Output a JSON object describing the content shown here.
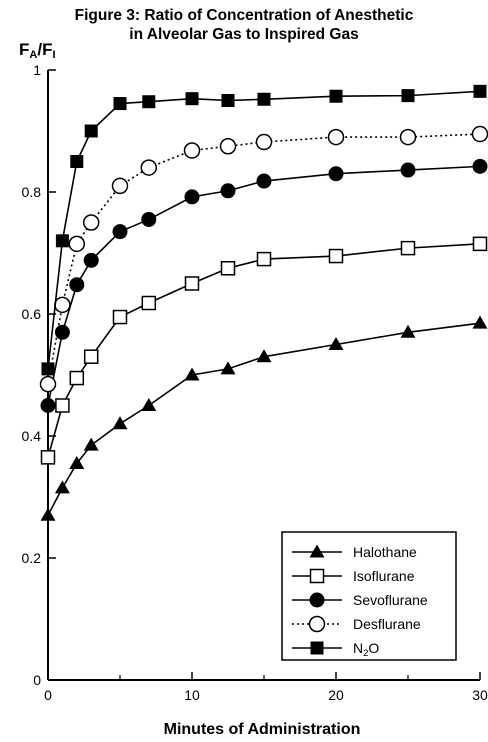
{
  "chart_data": {
    "type": "line",
    "title_line1": "Figure 3: Ratio of Concentration of Anesthetic",
    "title_line2": "in Alveolar Gas to Inspired Gas",
    "ylabel": {
      "main": "F",
      "sub1": "A",
      "sep": "/F",
      "sub2": "I"
    },
    "xlabel": "Minutes of Administration",
    "xlim": [
      0,
      30
    ],
    "ylim": [
      0,
      1
    ],
    "xticks": [
      0,
      10,
      20,
      30
    ],
    "xtick_labels": [
      "0",
      "10",
      "20",
      "30"
    ],
    "xminor": [
      5,
      15,
      25
    ],
    "yticks": [
      0,
      0.2,
      0.4,
      0.6,
      0.8,
      1
    ],
    "ytick_labels": [
      "0",
      "0.2",
      "0.4",
      "0.6",
      "0.8",
      "1"
    ],
    "grid": false,
    "legend_position": "bottom-right",
    "series": [
      {
        "name": "Halothane",
        "marker": "triangle",
        "line": "solid",
        "x": [
          0,
          1,
          2,
          3,
          5,
          7,
          10,
          12.5,
          15,
          20,
          25,
          30
        ],
        "y": [
          0.27,
          0.315,
          0.355,
          0.385,
          0.42,
          0.45,
          0.5,
          0.51,
          0.53,
          0.55,
          0.57,
          0.585
        ]
      },
      {
        "name": "Isoflurane",
        "marker": "square-open",
        "line": "solid",
        "x": [
          0,
          1,
          2,
          3,
          5,
          7,
          10,
          12.5,
          15,
          20,
          25,
          30
        ],
        "y": [
          0.365,
          0.45,
          0.495,
          0.53,
          0.595,
          0.618,
          0.65,
          0.675,
          0.69,
          0.695,
          0.708,
          0.715
        ]
      },
      {
        "name": "Sevoflurane",
        "marker": "circle-filled",
        "line": "solid",
        "x": [
          0,
          1,
          2,
          3,
          5,
          7,
          10,
          12.5,
          15,
          20,
          25,
          30
        ],
        "y": [
          0.45,
          0.57,
          0.648,
          0.688,
          0.735,
          0.755,
          0.792,
          0.802,
          0.818,
          0.83,
          0.836,
          0.842
        ]
      },
      {
        "name": "Desflurane",
        "marker": "circle-open",
        "line": "dotted",
        "x": [
          0,
          1,
          2,
          3,
          5,
          7,
          10,
          12.5,
          15,
          20,
          25,
          30
        ],
        "y": [
          0.485,
          0.615,
          0.715,
          0.75,
          0.81,
          0.84,
          0.868,
          0.875,
          0.882,
          0.89,
          0.89,
          0.895
        ]
      },
      {
        "name": "N",
        "name_sub": "2",
        "name_tail": "O",
        "marker": "square-filled",
        "line": "solid",
        "x": [
          0,
          1,
          2,
          3,
          5,
          7,
          10,
          12.5,
          15,
          20,
          25,
          30
        ],
        "y": [
          0.51,
          0.72,
          0.85,
          0.9,
          0.945,
          0.948,
          0.953,
          0.95,
          0.952,
          0.957,
          0.958,
          0.965
        ]
      }
    ]
  }
}
